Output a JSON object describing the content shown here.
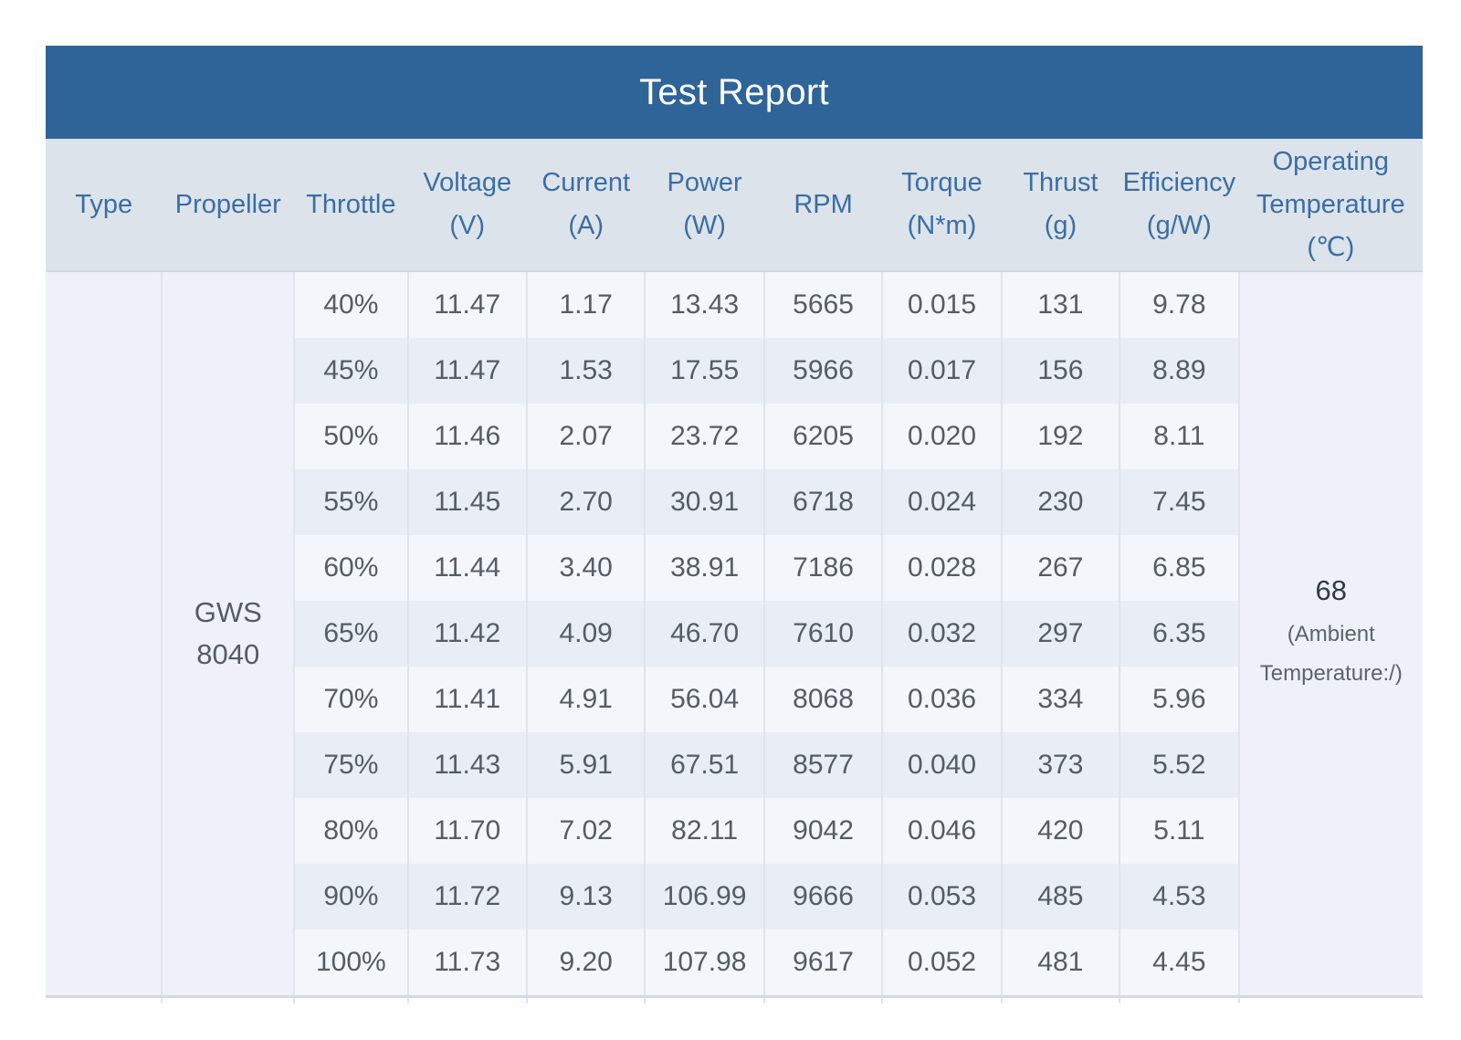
{
  "report": {
    "title": "Test Report",
    "headers": [
      [
        "Type"
      ],
      [
        "Propeller"
      ],
      [
        "Throttle"
      ],
      [
        "Voltage",
        "(V)"
      ],
      [
        "Current",
        "(A)"
      ],
      [
        "Power",
        "(W)"
      ],
      [
        "RPM"
      ],
      [
        "Torque",
        "(N*m)"
      ],
      [
        "Thrust",
        "(g)"
      ],
      [
        "Efficiency",
        "(g/W)"
      ],
      [
        "Operating",
        "Temperature",
        "(℃)"
      ]
    ],
    "type": "",
    "propeller": [
      "GWS",
      "8040"
    ],
    "temperature": {
      "value": "68",
      "note": [
        "(Ambient",
        "Temperature:/)"
      ]
    }
  },
  "chart_data": {
    "type": "table",
    "title": "Test Report",
    "columns": [
      "Type",
      "Propeller",
      "Throttle",
      "Voltage (V)",
      "Current (A)",
      "Power (W)",
      "RPM",
      "Torque (N*m)",
      "Thrust (g)",
      "Efficiency (g/W)",
      "Operating Temperature (℃)"
    ],
    "rows": [
      [
        "40%",
        "11.47",
        "1.17",
        "13.43",
        "5665",
        "0.015",
        "131",
        "9.78"
      ],
      [
        "45%",
        "11.47",
        "1.53",
        "17.55",
        "5966",
        "0.017",
        "156",
        "8.89"
      ],
      [
        "50%",
        "11.46",
        "2.07",
        "23.72",
        "6205",
        "0.020",
        "192",
        "8.11"
      ],
      [
        "55%",
        "11.45",
        "2.70",
        "30.91",
        "6718",
        "0.024",
        "230",
        "7.45"
      ],
      [
        "60%",
        "11.44",
        "3.40",
        "38.91",
        "7186",
        "0.028",
        "267",
        "6.85"
      ],
      [
        "65%",
        "11.42",
        "4.09",
        "46.70",
        "7610",
        "0.032",
        "297",
        "6.35"
      ],
      [
        "70%",
        "11.41",
        "4.91",
        "56.04",
        "8068",
        "0.036",
        "334",
        "5.96"
      ],
      [
        "75%",
        "11.43",
        "5.91",
        "67.51",
        "8577",
        "0.040",
        "373",
        "5.52"
      ],
      [
        "80%",
        "11.70",
        "7.02",
        "82.11",
        "9042",
        "0.046",
        "420",
        "5.11"
      ],
      [
        "90%",
        "11.72",
        "9.13",
        "106.99",
        "9666",
        "0.053",
        "485",
        "4.53"
      ],
      [
        "100%",
        "11.73",
        "9.20",
        "107.98",
        "9617",
        "0.052",
        "481",
        "4.45"
      ]
    ]
  }
}
